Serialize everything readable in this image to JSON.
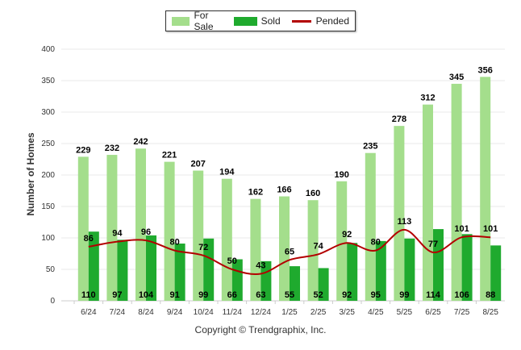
{
  "legend": {
    "for_sale_label": "For Sale",
    "sold_label": "Sold",
    "pended_label": "Pended"
  },
  "copyright": "Copyright © Trendgraphix, Inc.",
  "colors": {
    "for_sale": "#a4de8c",
    "sold": "#1faa2e",
    "pended": "#b30000",
    "grid": "#e8e8e8",
    "axis_text": "#333333"
  },
  "chart_data": {
    "type": "bar",
    "categories": [
      "6/24",
      "7/24",
      "8/24",
      "9/24",
      "10/24",
      "11/24",
      "12/24",
      "1/25",
      "2/25",
      "3/25",
      "4/25",
      "5/25",
      "6/25",
      "7/25",
      "8/25"
    ],
    "series": [
      {
        "name": "For Sale",
        "type": "bar",
        "values": [
          229,
          232,
          242,
          221,
          207,
          194,
          162,
          166,
          160,
          190,
          235,
          278,
          312,
          345,
          356
        ]
      },
      {
        "name": "Sold",
        "type": "bar",
        "values": [
          110,
          97,
          104,
          91,
          99,
          66,
          63,
          55,
          52,
          92,
          95,
          99,
          114,
          106,
          88
        ]
      },
      {
        "name": "Pended",
        "type": "line",
        "values": [
          86,
          94,
          96,
          80,
          72,
          50,
          43,
          65,
          74,
          92,
          80,
          113,
          77,
          101,
          101
        ]
      }
    ],
    "title": "",
    "xlabel": "",
    "ylabel": "Number of Homes",
    "ylim": [
      0,
      400
    ],
    "yticks": [
      0,
      50,
      100,
      150,
      200,
      250,
      300,
      350,
      400
    ],
    "grid": true,
    "legend_position": "top-center"
  }
}
